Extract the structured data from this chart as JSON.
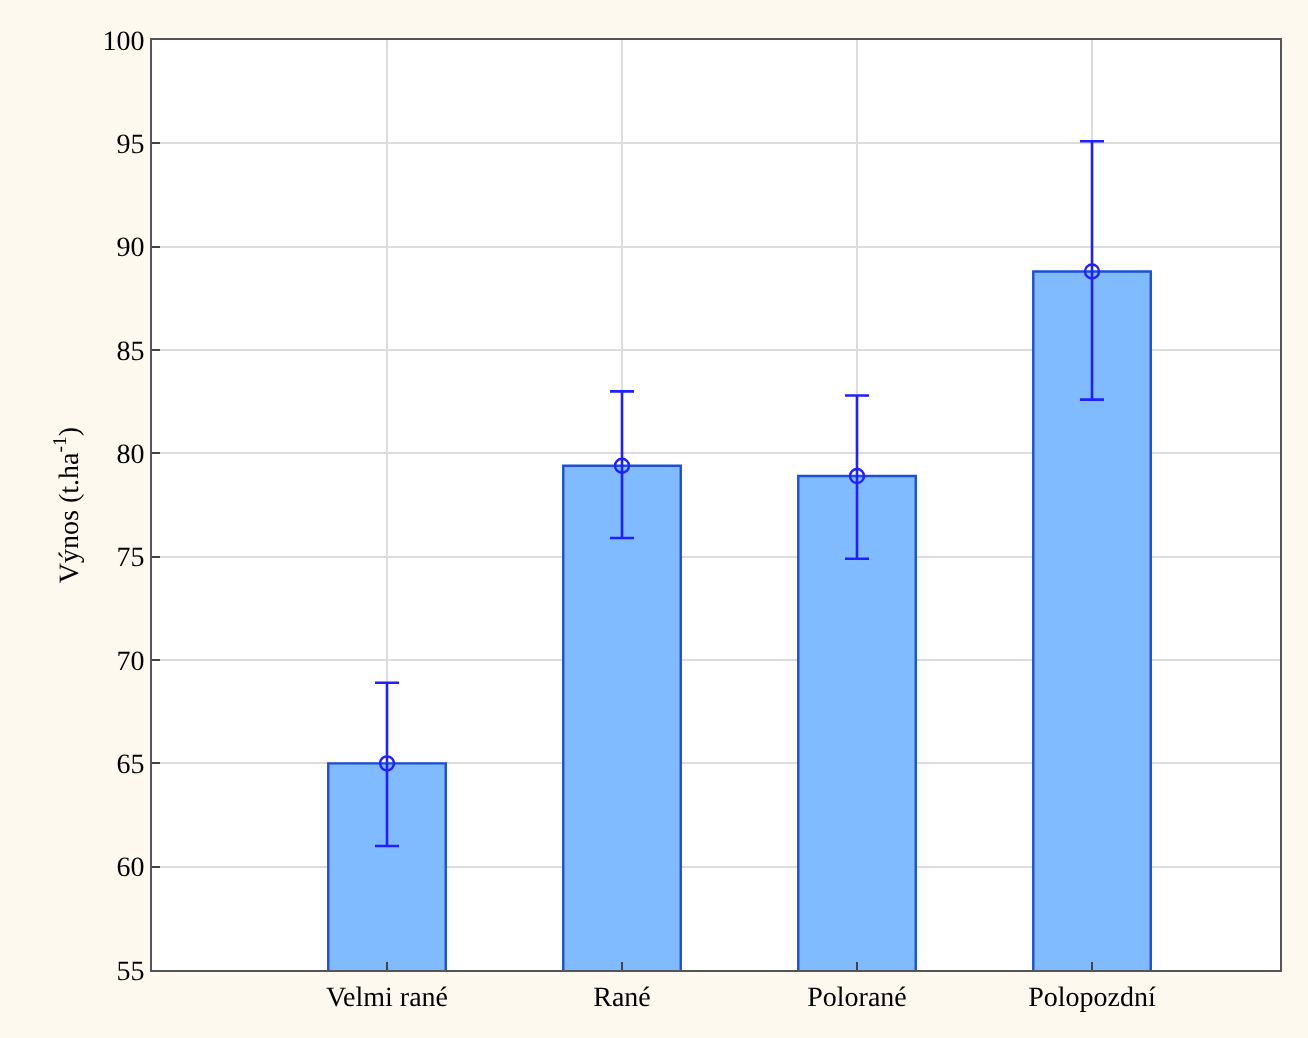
{
  "chart_data": {
    "type": "bar",
    "ylabel": "Výnos (t.ha$^{-1}$)",
    "categories": [
      "Velmi rané",
      "Rané",
      "Polorané",
      "Polopozdní"
    ],
    "series": [
      {
        "color": "#80bbff",
        "values": [
          65.0,
          79.4,
          78.9,
          88.8
        ]
      },
      {
        "type": "scatter",
        "color": "#1f1fff",
        "x": [
          "Velmi rané",
          "Rané",
          "Polorané",
          "Polopozdní"
        ],
        "values": [
          65.0,
          79.4,
          78.9,
          88.8
        ],
        "errors": [
          [
            61.0,
            68.9
          ],
          [
            75.9,
            83.0
          ],
          [
            74.9,
            82.8
          ],
          [
            82.6,
            95.1
          ]
        ]
      }
    ],
    "ylim": [
      55,
      100
    ],
    "yticks": [
      55,
      60,
      65,
      70,
      75,
      80,
      85,
      90,
      95,
      100
    ],
    "grid": true,
    "marker": "circle"
  }
}
